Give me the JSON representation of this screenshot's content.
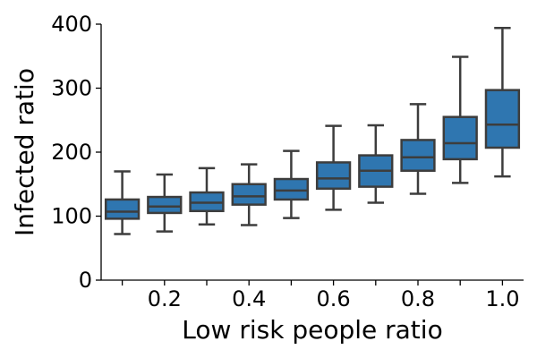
{
  "chart_data": {
    "type": "box",
    "title": "",
    "xlabel": "Low risk people ratio",
    "ylabel": "Infected ratio",
    "ylim": [
      0,
      400
    ],
    "yticks": [
      0,
      100,
      200,
      300,
      400
    ],
    "x": [
      0.1,
      0.2,
      0.3,
      0.4,
      0.5,
      0.6,
      0.7,
      0.8,
      0.9,
      1.0
    ],
    "xtick_labels": [
      "",
      "0.2",
      "",
      "0.4",
      "",
      "0.6",
      "",
      "0.8",
      "",
      "1.0"
    ],
    "box_color": "#2f76b0",
    "line_color": "#3d3d3d",
    "boxes": [
      {
        "whisker_low": 72,
        "q1": 96,
        "median": 107,
        "q3": 126,
        "whisker_high": 170
      },
      {
        "whisker_low": 76,
        "q1": 105,
        "median": 115,
        "q3": 130,
        "whisker_high": 165
      },
      {
        "whisker_low": 87,
        "q1": 108,
        "median": 121,
        "q3": 137,
        "whisker_high": 175
      },
      {
        "whisker_low": 86,
        "q1": 118,
        "median": 131,
        "q3": 150,
        "whisker_high": 181
      },
      {
        "whisker_low": 97,
        "q1": 126,
        "median": 140,
        "q3": 158,
        "whisker_high": 202
      },
      {
        "whisker_low": 110,
        "q1": 143,
        "median": 159,
        "q3": 184,
        "whisker_high": 241
      },
      {
        "whisker_low": 121,
        "q1": 146,
        "median": 171,
        "q3": 195,
        "whisker_high": 242
      },
      {
        "whisker_low": 135,
        "q1": 171,
        "median": 192,
        "q3": 219,
        "whisker_high": 275
      },
      {
        "whisker_low": 152,
        "q1": 189,
        "median": 214,
        "q3": 255,
        "whisker_high": 349
      },
      {
        "whisker_low": 162,
        "q1": 207,
        "median": 243,
        "q3": 297,
        "whisker_high": 394
      }
    ]
  }
}
